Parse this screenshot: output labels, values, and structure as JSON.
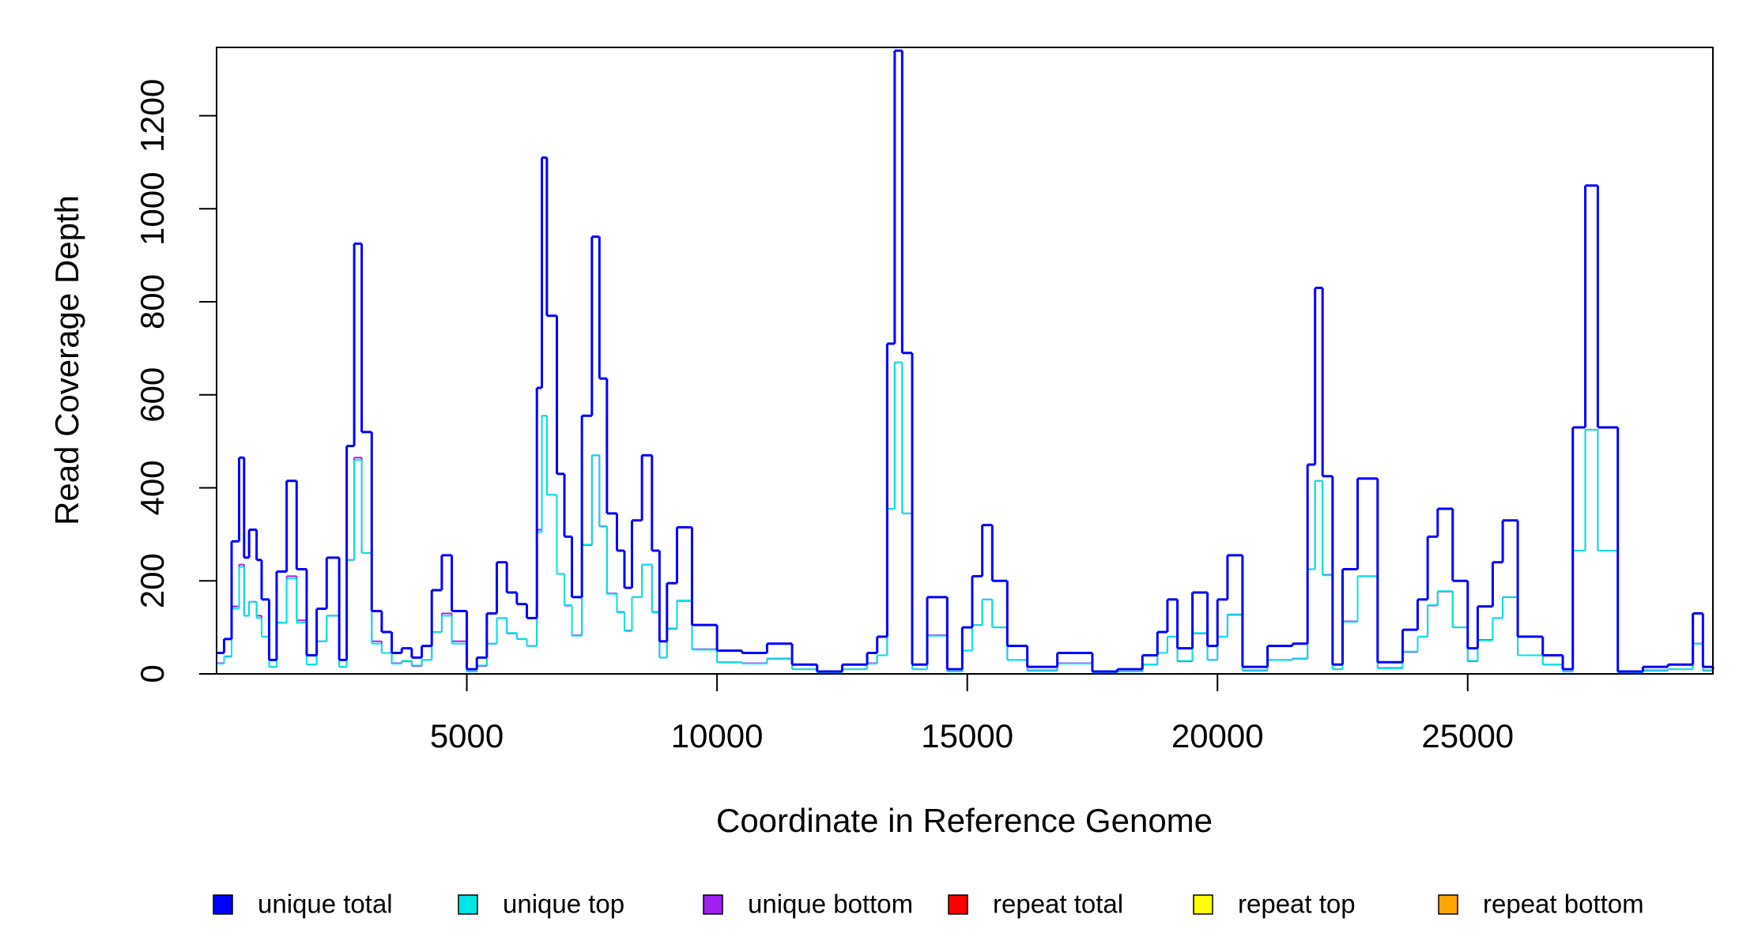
{
  "chart_data": {
    "type": "step",
    "xlabel": "Coordinate in Reference Genome",
    "ylabel": "Read Coverage Depth",
    "xlim": [
      0,
      29900
    ],
    "ylim": [
      0,
      1347
    ],
    "xticks": [
      5000,
      10000,
      15000,
      20000,
      25000
    ],
    "yticks": [
      0,
      200,
      400,
      600,
      800,
      1000,
      1200
    ],
    "x": [
      0,
      150,
      300,
      450,
      550,
      650,
      800,
      900,
      1050,
      1200,
      1400,
      1600,
      1800,
      2000,
      2200,
      2450,
      2600,
      2750,
      2900,
      3100,
      3300,
      3500,
      3700,
      3900,
      4100,
      4300,
      4500,
      4700,
      5000,
      5200,
      5400,
      5600,
      5800,
      6000,
      6200,
      6400,
      6500,
      6600,
      6800,
      6950,
      7100,
      7300,
      7500,
      7650,
      7800,
      8000,
      8150,
      8300,
      8500,
      8700,
      8850,
      9000,
      9200,
      9500,
      10000,
      10500,
      11000,
      11500,
      12000,
      12500,
      13000,
      13200,
      13400,
      13550,
      13700,
      13900,
      14200,
      14600,
      14900,
      15100,
      15300,
      15500,
      15800,
      16200,
      16800,
      17500,
      18000,
      18500,
      18800,
      19000,
      19200,
      19500,
      19800,
      20000,
      20200,
      20500,
      21000,
      21500,
      21800,
      21950,
      22100,
      22300,
      22500,
      22800,
      23200,
      23700,
      24000,
      24200,
      24400,
      24700,
      25000,
      25200,
      25500,
      25700,
      26000,
      26500,
      26900,
      27100,
      27350,
      27600,
      28000,
      28500,
      29000,
      29500,
      29700,
      29900
    ],
    "series": [
      {
        "name": "unique total",
        "color": "#0000ff",
        "values": [
          45,
          75,
          285,
          465,
          250,
          310,
          245,
          160,
          30,
          220,
          415,
          225,
          40,
          140,
          250,
          30,
          490,
          925,
          520,
          135,
          90,
          45,
          55,
          35,
          60,
          180,
          255,
          135,
          10,
          35,
          130,
          240,
          175,
          150,
          120,
          615,
          1110,
          770,
          430,
          295,
          165,
          555,
          940,
          635,
          345,
          265,
          185,
          330,
          470,
          265,
          70,
          195,
          315,
          105,
          50,
          45,
          65,
          20,
          5,
          20,
          45,
          80,
          710,
          1340,
          690,
          20,
          165,
          10,
          100,
          210,
          320,
          200,
          60,
          15,
          45,
          5,
          10,
          40,
          90,
          160,
          55,
          175,
          60,
          160,
          255,
          15,
          60,
          65,
          450,
          830,
          425,
          20,
          225,
          420,
          25,
          95,
          160,
          295,
          355,
          200,
          55,
          145,
          240,
          330,
          80,
          40,
          10,
          530,
          1050,
          530,
          5,
          15,
          20,
          130,
          15,
          10
        ]
      },
      {
        "name": "unique top",
        "color": "#00e5e5",
        "values": [
          22,
          38,
          140,
          230,
          125,
          155,
          120,
          80,
          15,
          110,
          205,
          110,
          20,
          70,
          125,
          15,
          245,
          460,
          260,
          65,
          45,
          22,
          28,
          18,
          30,
          90,
          125,
          65,
          5,
          18,
          65,
          120,
          88,
          75,
          60,
          305,
          555,
          385,
          215,
          148,
          82,
          278,
          470,
          318,
          172,
          132,
          92,
          165,
          235,
          132,
          35,
          98,
          158,
          52,
          25,
          22,
          32,
          10,
          2,
          10,
          22,
          40,
          355,
          670,
          345,
          10,
          82,
          5,
          50,
          105,
          160,
          100,
          30,
          8,
          22,
          2,
          5,
          20,
          45,
          80,
          28,
          88,
          30,
          80,
          128,
          8,
          30,
          32,
          225,
          415,
          212,
          10,
          112,
          210,
          12,
          48,
          80,
          148,
          178,
          100,
          28,
          72,
          120,
          165,
          40,
          20,
          5,
          265,
          525,
          265,
          2,
          8,
          10,
          65,
          8,
          5
        ]
      },
      {
        "name": "unique bottom",
        "color": "#a020f0",
        "values": [
          23,
          37,
          145,
          235,
          125,
          155,
          125,
          80,
          15,
          110,
          210,
          115,
          20,
          70,
          125,
          15,
          245,
          465,
          260,
          70,
          45,
          23,
          27,
          17,
          30,
          90,
          130,
          70,
          5,
          17,
          65,
          120,
          87,
          75,
          60,
          310,
          555,
          385,
          215,
          147,
          83,
          277,
          470,
          317,
          173,
          133,
          93,
          165,
          235,
          133,
          35,
          97,
          157,
          53,
          25,
          23,
          33,
          10,
          3,
          10,
          23,
          40,
          355,
          670,
          345,
          10,
          83,
          5,
          50,
          105,
          160,
          100,
          30,
          7,
          23,
          3,
          5,
          20,
          45,
          80,
          27,
          87,
          30,
          80,
          127,
          7,
          30,
          33,
          225,
          415,
          213,
          10,
          113,
          210,
          13,
          47,
          80,
          147,
          177,
          100,
          27,
          73,
          120,
          165,
          40,
          20,
          5,
          265,
          525,
          265,
          3,
          7,
          10,
          65,
          7,
          5
        ]
      },
      {
        "name": "repeat total",
        "color": "#ff0000",
        "values": [
          0,
          0,
          0,
          0,
          0,
          0,
          0,
          0,
          0,
          0,
          0,
          0,
          0,
          0,
          0,
          0,
          0,
          0,
          0,
          0,
          0,
          0,
          0,
          0,
          0,
          0,
          0,
          0,
          0,
          0,
          0,
          0,
          0,
          0,
          0,
          0,
          0,
          0,
          0,
          0,
          0,
          0,
          0,
          0,
          0,
          0,
          0,
          0,
          0,
          0,
          0,
          0,
          0,
          0,
          0,
          0,
          0,
          0,
          0,
          0,
          0,
          0,
          0,
          0,
          0,
          0,
          0,
          0,
          0,
          0,
          0,
          0,
          0,
          0,
          0,
          0,
          0,
          0,
          0,
          0,
          0,
          0,
          0,
          0,
          0,
          0,
          0,
          0,
          0,
          0,
          0,
          0,
          0,
          0,
          0,
          0,
          0,
          0,
          0,
          0,
          0,
          0,
          0,
          0,
          0,
          0,
          0,
          0,
          0,
          0,
          0,
          0,
          0,
          0,
          0,
          0
        ]
      },
      {
        "name": "repeat top",
        "color": "#ffff00",
        "values": [
          0,
          0,
          0,
          0,
          0,
          0,
          0,
          0,
          0,
          0,
          0,
          0,
          0,
          0,
          0,
          0,
          0,
          0,
          0,
          0,
          0,
          0,
          0,
          0,
          0,
          0,
          0,
          0,
          0,
          0,
          0,
          0,
          0,
          0,
          0,
          0,
          0,
          0,
          0,
          0,
          0,
          0,
          0,
          0,
          0,
          0,
          0,
          0,
          0,
          0,
          0,
          0,
          0,
          0,
          0,
          0,
          0,
          0,
          0,
          0,
          0,
          0,
          0,
          0,
          0,
          0,
          0,
          0,
          0,
          0,
          0,
          0,
          0,
          0,
          0,
          0,
          0,
          0,
          0,
          0,
          0,
          0,
          0,
          0,
          0,
          0,
          0,
          0,
          0,
          0,
          0,
          0,
          0,
          0,
          0,
          0,
          0,
          0,
          0,
          0,
          0,
          0,
          0,
          0,
          0,
          0,
          0,
          0,
          0,
          0,
          0,
          0,
          0,
          0,
          0,
          0
        ]
      },
      {
        "name": "repeat bottom",
        "color": "#ffa500",
        "values": [
          0,
          0,
          0,
          0,
          0,
          0,
          0,
          0,
          0,
          0,
          0,
          0,
          0,
          0,
          0,
          0,
          0,
          0,
          0,
          0,
          0,
          0,
          0,
          0,
          0,
          0,
          0,
          0,
          0,
          0,
          0,
          0,
          0,
          0,
          0,
          0,
          0,
          0,
          0,
          0,
          0,
          0,
          0,
          0,
          0,
          0,
          0,
          0,
          0,
          0,
          0,
          0,
          0,
          0,
          0,
          0,
          0,
          0,
          0,
          0,
          0,
          0,
          0,
          0,
          0,
          0,
          0,
          0,
          0,
          0,
          0,
          0,
          0,
          0,
          0,
          0,
          0,
          0,
          0,
          0,
          0,
          0,
          0,
          0,
          0,
          0,
          0,
          0,
          0,
          0,
          0,
          0,
          0,
          0,
          0,
          0,
          0,
          0,
          0,
          0,
          0,
          0,
          0,
          0,
          0,
          0,
          0,
          0,
          0,
          0,
          0,
          0,
          0,
          0,
          0,
          0
        ]
      }
    ]
  }
}
